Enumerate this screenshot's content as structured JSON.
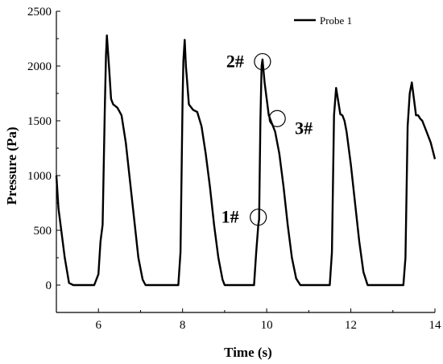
{
  "chart_data": {
    "type": "line",
    "title": "",
    "xlabel": "Time (s)",
    "ylabel": "Pressure (Pa)",
    "xlim": [
      5,
      14
    ],
    "ylim": [
      -250,
      2500
    ],
    "xticks": [
      "6",
      "8",
      "10",
      "12",
      "14"
    ],
    "xtick_values": [
      6,
      8,
      10,
      12,
      14
    ],
    "yticks": [
      "0",
      "500",
      "1000",
      "1500",
      "2000",
      "2500"
    ],
    "ytick_values": [
      0,
      500,
      1000,
      1500,
      2000,
      2500
    ],
    "grid": false,
    "legend": "top-right",
    "series": [
      {
        "name": "Probe 1",
        "color": "#000000",
        "x": [
          5.0,
          5.05,
          5.2,
          5.3,
          5.4,
          5.9,
          6.0,
          6.05,
          6.1,
          6.15,
          6.18,
          6.2,
          6.25,
          6.3,
          6.35,
          6.45,
          6.55,
          6.65,
          6.75,
          6.85,
          6.95,
          7.05,
          7.12,
          7.2,
          7.9,
          7.95,
          8.0,
          8.02,
          8.05,
          8.08,
          8.1,
          8.15,
          8.25,
          8.35,
          8.45,
          8.55,
          8.65,
          8.75,
          8.85,
          8.95,
          9.0,
          9.1,
          9.7,
          9.75,
          9.8,
          9.82,
          9.85,
          9.88,
          9.9,
          9.95,
          10.05,
          10.1,
          10.2,
          10.3,
          10.4,
          10.5,
          10.6,
          10.7,
          10.8,
          10.9,
          11.0,
          11.5,
          11.55,
          11.6,
          11.65,
          11.7,
          11.75,
          11.8,
          11.85,
          11.9,
          12.0,
          12.1,
          12.2,
          12.3,
          12.4,
          12.5,
          12.6,
          13.25,
          13.3,
          13.35,
          13.4,
          13.45,
          13.5,
          13.55,
          13.6,
          13.65,
          13.7,
          13.8,
          13.9,
          14.0
        ],
        "y": [
          1000,
          700,
          250,
          20,
          0,
          0,
          100,
          400,
          550,
          1600,
          2100,
          2280,
          2000,
          1700,
          1650,
          1620,
          1550,
          1300,
          950,
          600,
          250,
          50,
          0,
          0,
          0,
          300,
          1700,
          2050,
          2240,
          2000,
          1900,
          1650,
          1600,
          1580,
          1450,
          1200,
          900,
          550,
          250,
          50,
          0,
          0,
          0,
          300,
          550,
          600,
          1500,
          2000,
          2060,
          1850,
          1550,
          1500,
          1400,
          1200,
          900,
          550,
          250,
          60,
          0,
          0,
          0,
          0,
          300,
          1550,
          1800,
          1680,
          1560,
          1550,
          1500,
          1400,
          1100,
          750,
          400,
          120,
          0,
          0,
          0,
          0,
          250,
          1450,
          1750,
          1850,
          1700,
          1550,
          1550,
          1520,
          1500,
          1400,
          1300,
          1150
        ]
      }
    ],
    "annotations": [
      {
        "label": "1#",
        "x": 9.8,
        "y": 620
      },
      {
        "label": "2#",
        "x": 9.9,
        "y": 2040
      },
      {
        "label": "3#",
        "x": 10.25,
        "y": 1520
      }
    ]
  }
}
